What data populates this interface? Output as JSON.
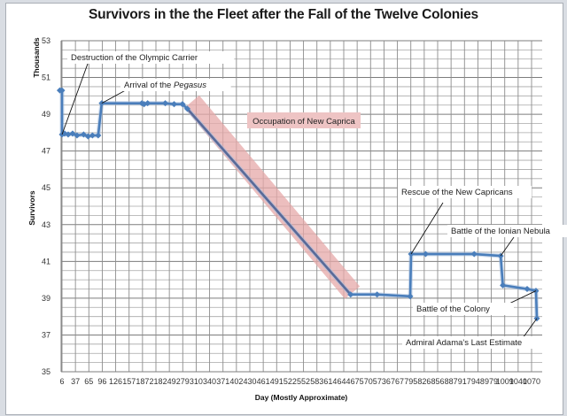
{
  "chart_data": {
    "type": "line",
    "title": "Survivors in the the Fleet after the Fall of the Twelve Colonies",
    "xlabel": "Day (Mostly Approximate)",
    "ylabel": "Survivors",
    "y_units_label": "Thousands",
    "ylim": [
      35,
      53
    ],
    "y_ticks": [
      35,
      37,
      39,
      41,
      43,
      45,
      47,
      49,
      51,
      53
    ],
    "x_tick_labels": [
      "6",
      "37",
      "65",
      "96",
      "126",
      "157",
      "187",
      "218",
      "249",
      "279",
      "310",
      "340",
      "371",
      "402",
      "430",
      "461",
      "491",
      "522",
      "552",
      "583",
      "614",
      "644",
      "675",
      "705",
      "736",
      "767",
      "795",
      "826",
      "856",
      "887",
      "917",
      "948",
      "979",
      "1009",
      "1040",
      "1070"
    ],
    "grid": true,
    "legend": "none",
    "series": [
      {
        "name": "Survivors (thousands)",
        "color": "#4a7ebb",
        "points": [
          {
            "day": 1,
            "value": 50.3
          },
          {
            "day": 6,
            "value": 50.3
          },
          {
            "day": 6,
            "value": 47.9
          },
          {
            "day": 12,
            "value": 47.95
          },
          {
            "day": 20,
            "value": 47.9
          },
          {
            "day": 30,
            "value": 47.95
          },
          {
            "day": 40,
            "value": 47.85
          },
          {
            "day": 55,
            "value": 47.9
          },
          {
            "day": 65,
            "value": 47.8
          },
          {
            "day": 75,
            "value": 47.85
          },
          {
            "day": 88,
            "value": 47.85
          },
          {
            "day": 96,
            "value": 49.6
          },
          {
            "day": 187,
            "value": 49.6
          },
          {
            "day": 192,
            "value": 49.55
          },
          {
            "day": 200,
            "value": 49.6
          },
          {
            "day": 240,
            "value": 49.6
          },
          {
            "day": 260,
            "value": 49.55
          },
          {
            "day": 279,
            "value": 49.55
          },
          {
            "day": 290,
            "value": 49.3
          },
          {
            "day": 660,
            "value": 39.2
          },
          {
            "day": 720,
            "value": 39.2
          },
          {
            "day": 795,
            "value": 39.1
          },
          {
            "day": 797,
            "value": 41.4
          },
          {
            "day": 830,
            "value": 41.4
          },
          {
            "day": 940,
            "value": 41.4
          },
          {
            "day": 1000,
            "value": 41.3
          },
          {
            "day": 1005,
            "value": 39.7
          },
          {
            "day": 1060,
            "value": 39.5
          },
          {
            "day": 1080,
            "value": 39.4
          },
          {
            "day": 1082,
            "value": 37.9
          }
        ]
      }
    ],
    "annotations": [
      {
        "label": "Destruction of the Olympic Carrier",
        "day": 6,
        "value": 47.9
      },
      {
        "label_prefix": "Arrival of the ",
        "label_italic": "Pegasus",
        "day": 96,
        "value": 49.6
      },
      {
        "label": "Occupation of New Caprica",
        "type": "highlight-band",
        "from_day": 290,
        "to_day": 660
      },
      {
        "label": "Rescue of the New Capricans",
        "day": 797,
        "value": 41.4
      },
      {
        "label": "Battle of the Ionian Nebula",
        "day": 1000,
        "value": 41.3
      },
      {
        "label": "Battle of the Colony",
        "day": 1080,
        "value": 39.4
      },
      {
        "label": "Admiral Adama's Last Estimate",
        "day": 1082,
        "value": 37.9
      }
    ]
  },
  "colors": {
    "line": "#4a7ebb",
    "band": "#e6a8a8",
    "band_label_bg": "#eec4c4",
    "grid": "#8c8c8c"
  }
}
